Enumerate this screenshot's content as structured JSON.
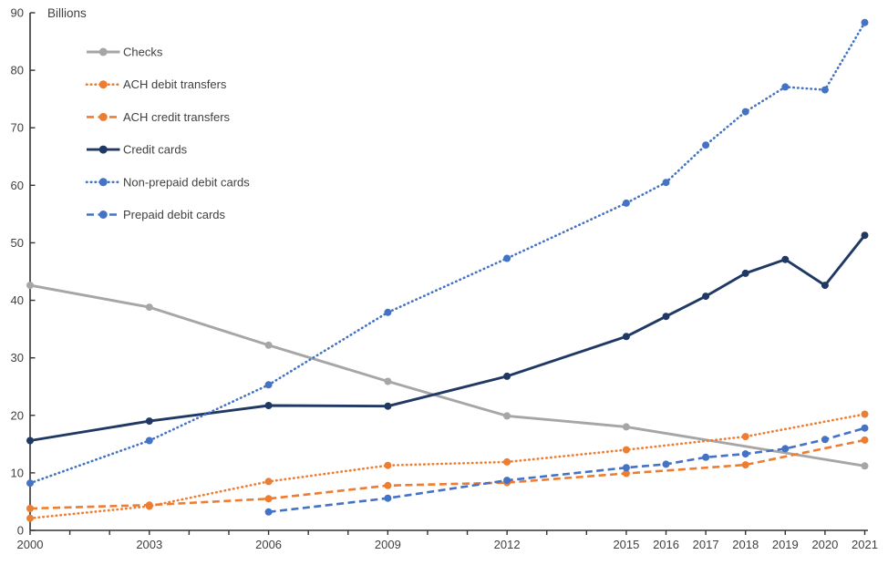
{
  "chart_data": {
    "type": "line",
    "title": "",
    "ylabel": "Billions",
    "xlabel": "",
    "ylim": [
      0,
      90
    ],
    "y_tick_step": 10,
    "x_range": [
      2000,
      2021
    ],
    "x_tick_labels": [
      2000,
      2003,
      2006,
      2009,
      2012,
      2015,
      2016,
      2017,
      2018,
      2019,
      2020,
      2021
    ],
    "x_minor_tick_every_years": 1,
    "grid": false,
    "legend_position": "top-left",
    "series": [
      {
        "name": "Checks",
        "color": "#a6a6a6",
        "line_style": "solid",
        "x": [
          2000,
          2003,
          2006,
          2009,
          2012,
          2015,
          2021
        ],
        "values": [
          42.6,
          38.8,
          32.2,
          25.9,
          19.9,
          18.0,
          11.2
        ]
      },
      {
        "name": "ACH debit transfers",
        "color": "#ed7d31",
        "line_style": "dotted",
        "x": [
          2000,
          2003,
          2006,
          2009,
          2012,
          2015,
          2018,
          2021
        ],
        "values": [
          2.1,
          4.2,
          8.5,
          11.3,
          11.9,
          14.0,
          16.3,
          20.2
        ]
      },
      {
        "name": "ACH credit transfers",
        "color": "#ed7d31",
        "line_style": "dashed",
        "x": [
          2000,
          2003,
          2006,
          2009,
          2012,
          2015,
          2018,
          2021
        ],
        "values": [
          3.8,
          4.4,
          5.5,
          7.8,
          8.3,
          9.9,
          11.4,
          15.7
        ]
      },
      {
        "name": "Credit cards",
        "color": "#1f3864",
        "line_style": "solid",
        "x": [
          2000,
          2003,
          2006,
          2009,
          2012,
          2015,
          2016,
          2017,
          2018,
          2019,
          2020,
          2021
        ],
        "values": [
          15.6,
          19.0,
          21.7,
          21.6,
          26.8,
          33.7,
          37.2,
          40.7,
          44.7,
          47.1,
          42.6,
          51.3
        ]
      },
      {
        "name": "Non-prepaid debit cards",
        "color": "#4472c4",
        "line_style": "dotted",
        "x": [
          2000,
          2003,
          2006,
          2009,
          2012,
          2015,
          2016,
          2017,
          2018,
          2019,
          2020,
          2021
        ],
        "values": [
          8.2,
          15.6,
          25.3,
          37.9,
          47.3,
          56.9,
          60.5,
          67.0,
          72.8,
          77.1,
          76.6,
          88.3
        ]
      },
      {
        "name": "Prepaid debit cards",
        "color": "#4472c4",
        "line_style": "dashed",
        "x": [
          2006,
          2009,
          2012,
          2015,
          2016,
          2017,
          2018,
          2019,
          2020,
          2021
        ],
        "values": [
          3.2,
          5.6,
          8.7,
          10.9,
          11.5,
          12.7,
          13.3,
          14.2,
          15.8,
          17.8
        ]
      }
    ]
  }
}
